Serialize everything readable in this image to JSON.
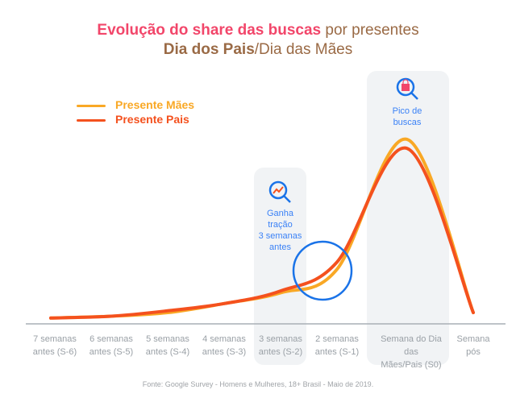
{
  "title": {
    "line1_highlight": "Evolução do share das buscas",
    "line1_rest": " por presentes",
    "line2_bold": "Dia dos Pais",
    "line2_rest": "/Dia das Mães"
  },
  "annotations": {
    "traction": [
      "Ganha",
      "tração",
      "3 semanas",
      "antes"
    ],
    "peak": [
      "Pico de",
      "buscas"
    ],
    "traction_icon": "search-trend-icon",
    "peak_icon": "search-shopping-bag-icon"
  },
  "source": "Fonte: Google Survey - Homens e Mulheres, 18+ Brasil - Maio de 2019.",
  "chart_data": {
    "type": "line",
    "categories": [
      [
        "7 semanas",
        "antes (S-6)"
      ],
      [
        "6 semanas",
        "antes (S-5)"
      ],
      [
        "5 semanas",
        "antes (S-4)"
      ],
      [
        "4 semanas",
        "antes (S-3)"
      ],
      [
        "3 semanas",
        "antes (S-2)"
      ],
      [
        "2 semanas",
        "antes (S-1)"
      ],
      [
        "Semana do Dia das",
        "Mães/Pais (S0)"
      ],
      [
        "Semana",
        "pós"
      ]
    ],
    "series": [
      {
        "name": "Presente Mães",
        "color": "#f9a825",
        "values": [
          1,
          2,
          4,
          9,
          15,
          28,
          100,
          4
        ]
      },
      {
        "name": "Presente Pais",
        "color": "#f4511e",
        "values": [
          1,
          2,
          5,
          9,
          16,
          32,
          95,
          4
        ]
      }
    ],
    "ylim": [
      0,
      100
    ],
    "grid": false,
    "legend": "top-left",
    "highlighted_categories": [
      4,
      6
    ],
    "circle_highlight_between": [
      4,
      5
    ],
    "accent_color": "#1a73e8"
  }
}
